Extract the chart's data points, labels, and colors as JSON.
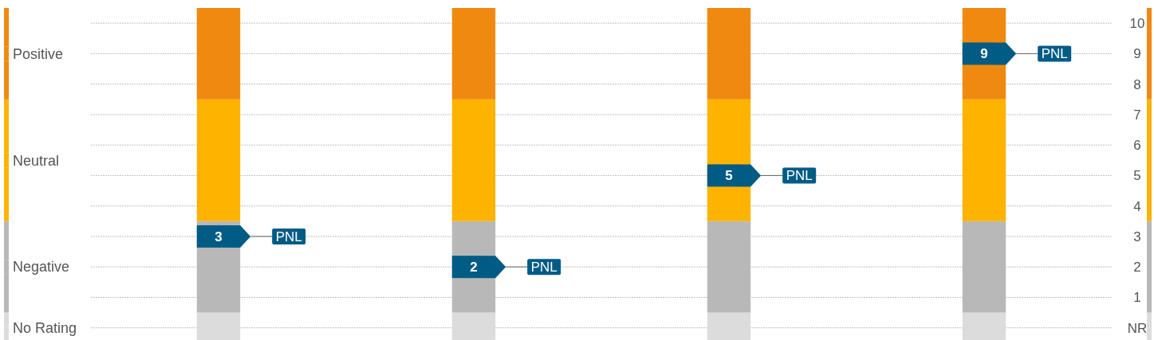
{
  "chart_data": {
    "type": "bar",
    "stacked": true,
    "categories": [
      null,
      null,
      null,
      null
    ],
    "series": [
      {
        "color": "#dcdcdc",
        "values": [
          -0.4,
          -0.4,
          -0.4,
          -0.4
        ]
      },
      {
        "name": "No Rating",
        "color": "#dcdcdc",
        "values": [
          0.5,
          0.5,
          0.5,
          0.5
        ]
      },
      {
        "name": "Negative",
        "color": "#b8b8b8",
        "values": [
          3,
          3,
          3,
          3
        ]
      },
      {
        "name": "Neutral",
        "color": "#fdb300",
        "values": [
          4,
          4,
          4,
          4
        ]
      },
      {
        "name": "Positive",
        "color": "#f0890f",
        "values": [
          3,
          3,
          3,
          3
        ]
      },
      {
        "name": "PNL",
        "type": "scatter",
        "color": "#005b85",
        "values": [
          3,
          2,
          5,
          9
        ],
        "value_labels": [
          "3",
          "2",
          "5",
          "9"
        ]
      }
    ],
    "ylim": [
      -0.4,
      10.5
    ],
    "yticks": [
      {
        "value": 0,
        "label": "NR"
      },
      1,
      2,
      3,
      4,
      5,
      6,
      7,
      8,
      9,
      10
    ],
    "grid": "y",
    "legend": "left",
    "marker": "square"
  }
}
